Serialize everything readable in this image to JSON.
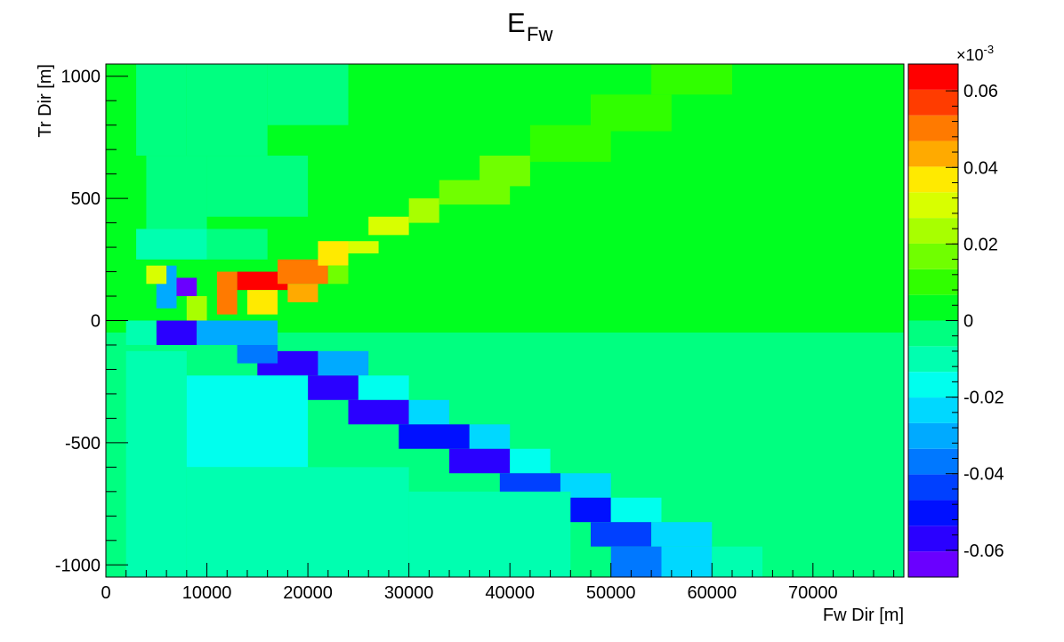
{
  "chart_data": {
    "type": "heatmap",
    "title": "E",
    "title_subscript": "Fw",
    "xlabel": "Fw Dir [m]",
    "ylabel": "Tr Dir [m]",
    "xlim": [
      0,
      79000
    ],
    "ylim": [
      -1050,
      1050
    ],
    "x_ticks": [
      0,
      10000,
      20000,
      30000,
      40000,
      50000,
      60000,
      70000
    ],
    "x_tick_labels": [
      "0",
      "10000",
      "20000",
      "30000",
      "40000",
      "50000",
      "60000",
      "70000"
    ],
    "y_ticks": [
      -1000,
      -500,
      0,
      500,
      1000
    ],
    "y_tick_labels": [
      "-1000",
      "-500",
      "0",
      "500",
      "1000"
    ],
    "colorbar": {
      "range": [
        -0.067,
        0.067
      ],
      "multiplier_base": "×10",
      "multiplier_exponent": "-3",
      "ticks": [
        -0.06,
        -0.04,
        -0.02,
        0,
        0.02,
        0.04,
        0.06
      ],
      "tick_labels": [
        "-0.06",
        "-0.04",
        "-0.02",
        "0",
        "0.02",
        "0.04",
        "0.06"
      ],
      "levels": 20,
      "colors": [
        "#6a00ff",
        "#2a00ff",
        "#0010ff",
        "#0040ff",
        "#0078ff",
        "#00aaff",
        "#00d8ff",
        "#00ffee",
        "#00ffb0",
        "#00ff80",
        "#00ff20",
        "#30ff00",
        "#70ff00",
        "#a8ff00",
        "#d8ff00",
        "#ffea00",
        "#ffaa00",
        "#ff7a00",
        "#ff3c00",
        "#ff0000"
      ]
    },
    "grid": false,
    "cells": [
      {
        "x": [
          1000,
          3000
        ],
        "y": [
          675,
          1050
        ],
        "v": 0.001
      },
      {
        "x": [
          3000,
          8000
        ],
        "y": [
          675,
          1050
        ],
        "v": -0.004
      },
      {
        "x": [
          8000,
          16000
        ],
        "y": [
          675,
          1050
        ],
        "v": -0.006
      },
      {
        "x": [
          16000,
          24000
        ],
        "y": [
          800,
          1050
        ],
        "v": -0.003
      },
      {
        "x": [
          1000,
          4000
        ],
        "y": [
          375,
          675
        ],
        "v": 0.0
      },
      {
        "x": [
          4000,
          10000
        ],
        "y": [
          375,
          675
        ],
        "v": -0.006
      },
      {
        "x": [
          10000,
          20000
        ],
        "y": [
          425,
          675
        ],
        "v": -0.004
      },
      {
        "x": [
          3000,
          10000
        ],
        "y": [
          250,
          375
        ],
        "v": -0.007
      },
      {
        "x": [
          10000,
          16000
        ],
        "y": [
          250,
          375
        ],
        "v": -0.003
      },
      {
        "x": [
          5000,
          7000
        ],
        "y": [
          50,
          225
        ],
        "v": -0.033
      },
      {
        "x": [
          7000,
          9000
        ],
        "y": [
          100,
          175
        ],
        "v": -0.062
      },
      {
        "x": [
          8000,
          10000
        ],
        "y": [
          0,
          100
        ],
        "v": 0.025
      },
      {
        "x": [
          4000,
          6000
        ],
        "y": [
          150,
          225
        ],
        "v": 0.032
      },
      {
        "x": [
          13000,
          18000
        ],
        "y": [
          125,
          200
        ],
        "v": 0.066
      },
      {
        "x": [
          11000,
          13000
        ],
        "y": [
          25,
          200
        ],
        "v": 0.052
      },
      {
        "x": [
          17000,
          22000
        ],
        "y": [
          150,
          250
        ],
        "v": 0.048
      },
      {
        "x": [
          14000,
          17000
        ],
        "y": [
          25,
          125
        ],
        "v": 0.04
      },
      {
        "x": [
          18000,
          21000
        ],
        "y": [
          75,
          150
        ],
        "v": 0.045
      },
      {
        "x": [
          21000,
          24000
        ],
        "y": [
          225,
          325
        ],
        "v": 0.04
      },
      {
        "x": [
          24000,
          27000
        ],
        "y": [
          275,
          325
        ],
        "v": 0.03
      },
      {
        "x": [
          22000,
          24000
        ],
        "y": [
          150,
          225
        ],
        "v": 0.02
      },
      {
        "x": [
          26000,
          30000
        ],
        "y": [
          350,
          425
        ],
        "v": 0.032
      },
      {
        "x": [
          30000,
          33000
        ],
        "y": [
          400,
          500
        ],
        "v": 0.022
      },
      {
        "x": [
          33000,
          40000
        ],
        "y": [
          475,
          575
        ],
        "v": 0.015
      },
      {
        "x": [
          37000,
          42000
        ],
        "y": [
          550,
          675
        ],
        "v": 0.018
      },
      {
        "x": [
          42000,
          50000
        ],
        "y": [
          650,
          800
        ],
        "v": 0.012
      },
      {
        "x": [
          48000,
          56000
        ],
        "y": [
          775,
          925
        ],
        "v": 0.01
      },
      {
        "x": [
          54000,
          62000
        ],
        "y": [
          925,
          1050
        ],
        "v": 0.012
      },
      {
        "x": [
          5000,
          9000
        ],
        "y": [
          -100,
          0
        ],
        "v": -0.057
      },
      {
        "x": [
          9000,
          17000
        ],
        "y": [
          -100,
          0
        ],
        "v": -0.03
      },
      {
        "x": [
          2000,
          5000
        ],
        "y": [
          -100,
          0
        ],
        "v": -0.01
      },
      {
        "x": [
          15000,
          21000
        ],
        "y": [
          -225,
          -125
        ],
        "v": -0.055
      },
      {
        "x": [
          13000,
          17000
        ],
        "y": [
          -175,
          -100
        ],
        "v": -0.035
      },
      {
        "x": [
          21000,
          26000
        ],
        "y": [
          -225,
          -125
        ],
        "v": -0.028
      },
      {
        "x": [
          20000,
          25000
        ],
        "y": [
          -325,
          -225
        ],
        "v": -0.06
      },
      {
        "x": [
          25000,
          30000
        ],
        "y": [
          -325,
          -225
        ],
        "v": -0.02
      },
      {
        "x": [
          24000,
          30000
        ],
        "y": [
          -425,
          -325
        ],
        "v": -0.058
      },
      {
        "x": [
          30000,
          34000
        ],
        "y": [
          -425,
          -325
        ],
        "v": -0.022
      },
      {
        "x": [
          29000,
          36000
        ],
        "y": [
          -525,
          -425
        ],
        "v": -0.05
      },
      {
        "x": [
          36000,
          40000
        ],
        "y": [
          -525,
          -425
        ],
        "v": -0.025
      },
      {
        "x": [
          34000,
          40000
        ],
        "y": [
          -625,
          -525
        ],
        "v": -0.055
      },
      {
        "x": [
          40000,
          44000
        ],
        "y": [
          -625,
          -525
        ],
        "v": -0.02
      },
      {
        "x": [
          39000,
          45000
        ],
        "y": [
          -725,
          -625
        ],
        "v": -0.045
      },
      {
        "x": [
          45000,
          50000
        ],
        "y": [
          -725,
          -625
        ],
        "v": -0.022
      },
      {
        "x": [
          43000,
          50000
        ],
        "y": [
          -825,
          -725
        ],
        "v": -0.05
      },
      {
        "x": [
          50000,
          55000
        ],
        "y": [
          -825,
          -725
        ],
        "v": -0.018
      },
      {
        "x": [
          48000,
          54000
        ],
        "y": [
          -925,
          -825
        ],
        "v": -0.045
      },
      {
        "x": [
          54000,
          60000
        ],
        "y": [
          -925,
          -825
        ],
        "v": -0.022
      },
      {
        "x": [
          50000,
          55000
        ],
        "y": [
          -1050,
          -925
        ],
        "v": -0.036
      },
      {
        "x": [
          55000,
          60000
        ],
        "y": [
          -1050,
          -925
        ],
        "v": -0.022
      },
      {
        "x": [
          60000,
          65000
        ],
        "y": [
          -1050,
          -925
        ],
        "v": -0.01
      },
      {
        "x": [
          2000,
          8000
        ],
        "y": [
          -1050,
          -125
        ],
        "v": -0.008
      },
      {
        "x": [
          8000,
          20000
        ],
        "y": [
          -600,
          -225
        ],
        "v": -0.016
      },
      {
        "x": [
          8000,
          30000
        ],
        "y": [
          -1050,
          -600
        ],
        "v": -0.013
      },
      {
        "x": [
          30000,
          46000
        ],
        "y": [
          -1050,
          -700
        ],
        "v": -0.012
      }
    ]
  }
}
